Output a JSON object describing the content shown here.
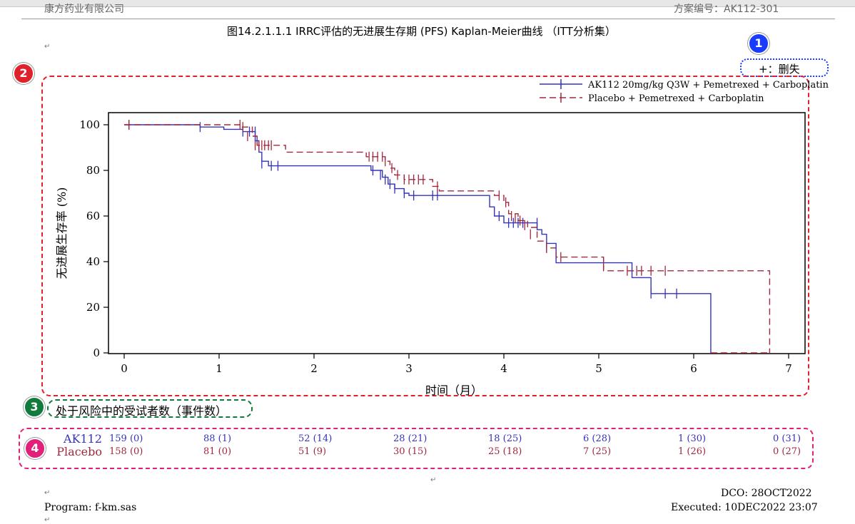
{
  "header": {
    "left_text": "康方药业有限公司",
    "right_text": "方案编号：AK112-301"
  },
  "title": "图14.2.1.1.1 IRRC评估的无进展生存期 (PFS) Kaplan-Meier曲线 （ITT分析集）",
  "censor_note": "+：删失",
  "callouts": [
    "1",
    "2",
    "3",
    "4"
  ],
  "colors": {
    "ak112": "#3333bb",
    "placebo": "#a0283c",
    "callout1": "#1a3cff",
    "callout2": "#e0202a",
    "callout3": "#127a3a",
    "callout4": "#e0207a"
  },
  "chart_data": {
    "type": "line",
    "subtype": "kaplan-meier step",
    "xlabel": "时间（月）",
    "ylabel": "无进展生存率 (%)",
    "xlim": [
      0,
      7
    ],
    "ylim": [
      0,
      100
    ],
    "xticks": [
      "0",
      "1",
      "2",
      "3",
      "4",
      "5",
      "6",
      "7"
    ],
    "yticks": [
      "0",
      "20",
      "40",
      "60",
      "80",
      "100"
    ],
    "legend_position": "top-right",
    "series": [
      {
        "name": "AK112 20mg/kg Q3W + Pemetrexed + Carboplatin",
        "color": "#3333bb",
        "dash": "solid",
        "steps": [
          [
            0,
            100
          ],
          [
            0.8,
            99
          ],
          [
            1.05,
            98
          ],
          [
            1.25,
            97
          ],
          [
            1.38,
            93
          ],
          [
            1.42,
            88
          ],
          [
            1.45,
            84
          ],
          [
            1.52,
            82
          ],
          [
            2.6,
            80
          ],
          [
            2.72,
            77
          ],
          [
            2.78,
            74
          ],
          [
            2.85,
            72
          ],
          [
            2.95,
            70
          ],
          [
            3.0,
            69
          ],
          [
            3.85,
            64
          ],
          [
            3.9,
            60
          ],
          [
            4.0,
            57
          ],
          [
            4.35,
            54
          ],
          [
            4.4,
            52
          ],
          [
            4.45,
            48
          ],
          [
            4.55,
            39.5
          ],
          [
            5.35,
            33
          ],
          [
            5.55,
            26
          ],
          [
            6.18,
            0
          ]
        ],
        "censors": [
          [
            0.05,
            100
          ],
          [
            0.8,
            99
          ],
          [
            1.25,
            97
          ],
          [
            1.32,
            97
          ],
          [
            1.38,
            97
          ],
          [
            1.4,
            93
          ],
          [
            1.45,
            83
          ],
          [
            1.55,
            82
          ],
          [
            1.62,
            82
          ],
          [
            2.62,
            80
          ],
          [
            2.7,
            78
          ],
          [
            2.75,
            76
          ],
          [
            2.8,
            74
          ],
          [
            2.85,
            72
          ],
          [
            2.95,
            70
          ],
          [
            3.05,
            69
          ],
          [
            3.25,
            69
          ],
          [
            3.3,
            69
          ],
          [
            3.95,
            60
          ],
          [
            4.05,
            57
          ],
          [
            4.1,
            57
          ],
          [
            4.15,
            57
          ],
          [
            4.2,
            57
          ],
          [
            4.35,
            57
          ],
          [
            4.45,
            46
          ],
          [
            5.55,
            26
          ],
          [
            5.7,
            26
          ],
          [
            5.82,
            26
          ]
        ]
      },
      {
        "name": "Placebo + Pemetrexed + Carboplatin",
        "color": "#a0283c",
        "dash": "dashed",
        "steps": [
          [
            0,
            100
          ],
          [
            1.22,
            99
          ],
          [
            1.35,
            95
          ],
          [
            1.4,
            91
          ],
          [
            1.7,
            88
          ],
          [
            2.55,
            86
          ],
          [
            2.75,
            84
          ],
          [
            2.8,
            81
          ],
          [
            2.85,
            78
          ],
          [
            2.95,
            76
          ],
          [
            3.25,
            73
          ],
          [
            3.32,
            71
          ],
          [
            3.9,
            69
          ],
          [
            4.0,
            66
          ],
          [
            4.05,
            61
          ],
          [
            4.15,
            58
          ],
          [
            4.25,
            55
          ],
          [
            4.35,
            49
          ],
          [
            4.45,
            46
          ],
          [
            4.55,
            42
          ],
          [
            5.05,
            36
          ],
          [
            6.8,
            0
          ]
        ],
        "censors": [
          [
            0.05,
            100
          ],
          [
            1.22,
            100
          ],
          [
            1.25,
            99
          ],
          [
            1.3,
            95
          ],
          [
            1.38,
            91
          ],
          [
            1.42,
            91
          ],
          [
            1.45,
            91
          ],
          [
            1.48,
            91
          ],
          [
            1.52,
            91
          ],
          [
            1.55,
            91
          ],
          [
            2.58,
            86
          ],
          [
            2.62,
            86
          ],
          [
            2.67,
            86
          ],
          [
            2.72,
            86
          ],
          [
            2.75,
            84
          ],
          [
            2.82,
            81
          ],
          [
            2.88,
            78
          ],
          [
            2.95,
            76
          ],
          [
            3.0,
            76
          ],
          [
            3.05,
            76
          ],
          [
            3.1,
            76
          ],
          [
            3.15,
            76
          ],
          [
            3.3,
            73
          ],
          [
            3.95,
            69
          ],
          [
            4.02,
            66
          ],
          [
            4.08,
            60
          ],
          [
            4.12,
            59
          ],
          [
            4.17,
            58
          ],
          [
            4.22,
            56
          ],
          [
            4.28,
            52
          ],
          [
            4.45,
            46
          ],
          [
            4.6,
            42
          ],
          [
            5.05,
            39
          ],
          [
            5.3,
            36
          ],
          [
            5.4,
            36
          ],
          [
            5.45,
            36
          ],
          [
            5.55,
            36
          ],
          [
            5.7,
            36
          ]
        ]
      }
    ]
  },
  "risk_table": {
    "title": "处于风险中的受试者数（事件数）",
    "rows": [
      {
        "label": "AK112",
        "color": "#3333bb",
        "cells": [
          "159 (0)",
          "88 (1)",
          "52 (14)",
          "28 (21)",
          "18 (25)",
          "6 (28)",
          "1 (30)",
          "0 (31)"
        ]
      },
      {
        "label": "Placebo",
        "color": "#a0283c",
        "cells": [
          "158 (0)",
          "81 (0)",
          "51 (9)",
          "30 (15)",
          "25 (18)",
          "7 (25)",
          "1 (26)",
          "0 (27)"
        ]
      }
    ]
  },
  "footer": {
    "dco": "DCO: 28OCT2022",
    "program": "Program: f-km.sas",
    "executed": "Executed: 10DEC2022 23:07"
  }
}
